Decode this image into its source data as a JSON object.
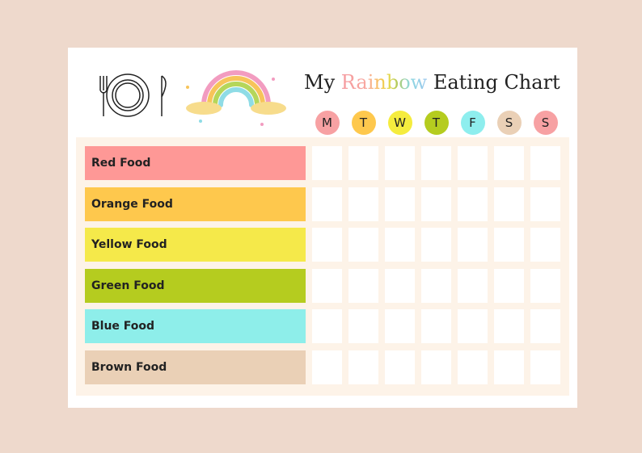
{
  "header": {
    "title": {
      "prefix": "My",
      "highlight": "Rainbow",
      "suffix": "Eating Chart"
    }
  },
  "days": [
    {
      "label": "M",
      "color": "#f7a1a3"
    },
    {
      "label": "T",
      "color": "#fec84d"
    },
    {
      "label": "W",
      "color": "#f5ec3e"
    },
    {
      "label": "T",
      "color": "#b5cc1f"
    },
    {
      "label": "F",
      "color": "#8eeeee"
    },
    {
      "label": "S",
      "color": "#ead0b6"
    },
    {
      "label": "S",
      "color": "#f7a1a3"
    }
  ],
  "rows": [
    {
      "label": "Red Food",
      "color": "#fe9896"
    },
    {
      "label": "Orange Food",
      "color": "#fec84d"
    },
    {
      "label": "Yellow Food",
      "color": "#f5e94a"
    },
    {
      "label": "Green Food",
      "color": "#b5cc1f"
    },
    {
      "label": "Blue Food",
      "color": "#8eeeea"
    },
    {
      "label": "Brown Food",
      "color": "#ead0b6"
    }
  ]
}
